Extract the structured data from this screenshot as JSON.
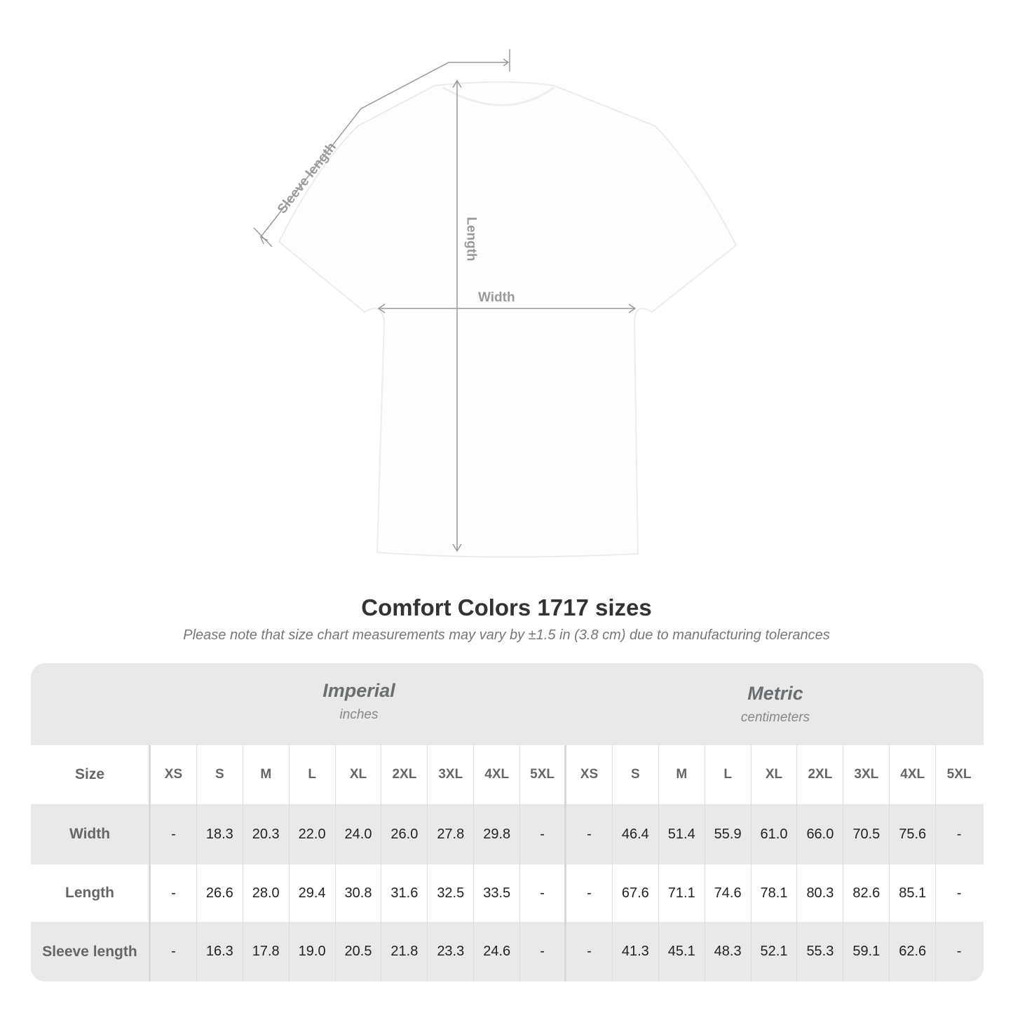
{
  "diagram": {
    "labels": {
      "sleeve": "Sleeve length",
      "length": "Length",
      "width": "Width"
    }
  },
  "title": "Comfort Colors 1717 sizes",
  "note": "Please note that size chart measurements may vary by ±1.5 in (3.8 cm) due to manufacturing tolerances",
  "table": {
    "imperial": {
      "name": "Imperial",
      "unit": "inches"
    },
    "metric": {
      "name": "Metric",
      "unit": "centimeters"
    },
    "size_label": "Size",
    "sizes": [
      "XS",
      "S",
      "M",
      "L",
      "XL",
      "2XL",
      "3XL",
      "4XL",
      "5XL"
    ],
    "rows": [
      {
        "label": "Width",
        "imperial": [
          "-",
          "18.3",
          "20.3",
          "22.0",
          "24.0",
          "26.0",
          "27.8",
          "29.8",
          "-"
        ],
        "metric": [
          "-",
          "46.4",
          "51.4",
          "55.9",
          "61.0",
          "66.0",
          "70.5",
          "75.6",
          "-"
        ]
      },
      {
        "label": "Length",
        "imperial": [
          "-",
          "26.6",
          "28.0",
          "29.4",
          "30.8",
          "31.6",
          "32.5",
          "33.5",
          "-"
        ],
        "metric": [
          "-",
          "67.6",
          "71.1",
          "74.6",
          "78.1",
          "80.3",
          "82.6",
          "85.1",
          "-"
        ]
      },
      {
        "label": "Sleeve length",
        "imperial": [
          "-",
          "16.3",
          "17.8",
          "19.0",
          "20.5",
          "21.8",
          "23.3",
          "24.6",
          "-"
        ],
        "metric": [
          "-",
          "41.3",
          "45.1",
          "48.3",
          "52.1",
          "55.3",
          "59.1",
          "62.6",
          "-"
        ]
      }
    ]
  }
}
